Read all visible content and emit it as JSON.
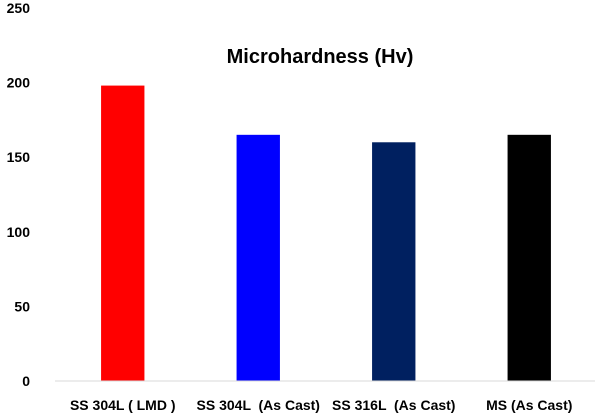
{
  "chart_data": {
    "type": "bar",
    "title": "Microhardness (Hv)",
    "xlabel": "",
    "ylabel": "",
    "categories": [
      "SS 304L ( LMD )",
      "SS 304L  (As Cast)",
      "SS 316L  (As Cast)",
      "MS (As Cast)"
    ],
    "series": [
      {
        "values": [
          198,
          165,
          160,
          165
        ],
        "colors": [
          "#ff0000",
          "#0000ff",
          "#002060",
          "#000000"
        ]
      }
    ],
    "ylim": [
      0,
      250
    ],
    "yticks": [
      0,
      50,
      100,
      150,
      200,
      250
    ],
    "grid": false,
    "legend": "none"
  }
}
